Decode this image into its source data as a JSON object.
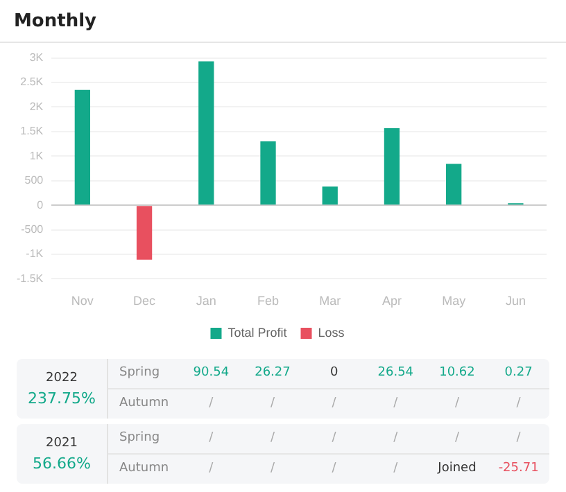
{
  "chart_data": [
    {
      "type": "bar",
      "title": "Monthly",
      "categories": [
        "Nov",
        "Dec",
        "Jan",
        "Feb",
        "Mar",
        "Apr",
        "May",
        "Jun"
      ],
      "series": [
        {
          "name": "Total Profit",
          "color": "#13a98a",
          "values": [
            2350,
            null,
            2930,
            1300,
            380,
            1570,
            840,
            40
          ]
        },
        {
          "name": "Loss",
          "color": "#e8505f",
          "values": [
            null,
            -1110,
            null,
            null,
            null,
            null,
            null,
            null
          ]
        }
      ],
      "stacked": true,
      "ylim": [
        -1500,
        3000
      ],
      "yticks": [
        {
          "value": -1500,
          "label": "-1.5K"
        },
        {
          "value": -1000,
          "label": "-1K"
        },
        -500,
        0,
        500,
        {
          "value": 1000,
          "label": "1K"
        },
        {
          "value": 1500,
          "label": "1.5K"
        },
        {
          "value": 2000,
          "label": "2K"
        },
        {
          "value": 2500,
          "label": "2.5K"
        },
        {
          "value": 3000,
          "label": "3K"
        }
      ],
      "grid": "y",
      "legend": "bottom"
    },
    {
      "type": "other",
      "annotations": [
        "2022",
        "237.75%",
        "Spring",
        "90.54",
        "26.27",
        "0",
        "26.54",
        "10.62",
        "0.27",
        "Autumn",
        "/",
        "/",
        "/",
        "/",
        "/",
        "/",
        "2021",
        "56.66%",
        "Spring",
        "/",
        "/",
        "/",
        "/",
        "/",
        "/",
        "Autumn",
        "/",
        "/",
        "/",
        "/",
        "Joined",
        "-25.71"
      ]
    }
  ]
}
